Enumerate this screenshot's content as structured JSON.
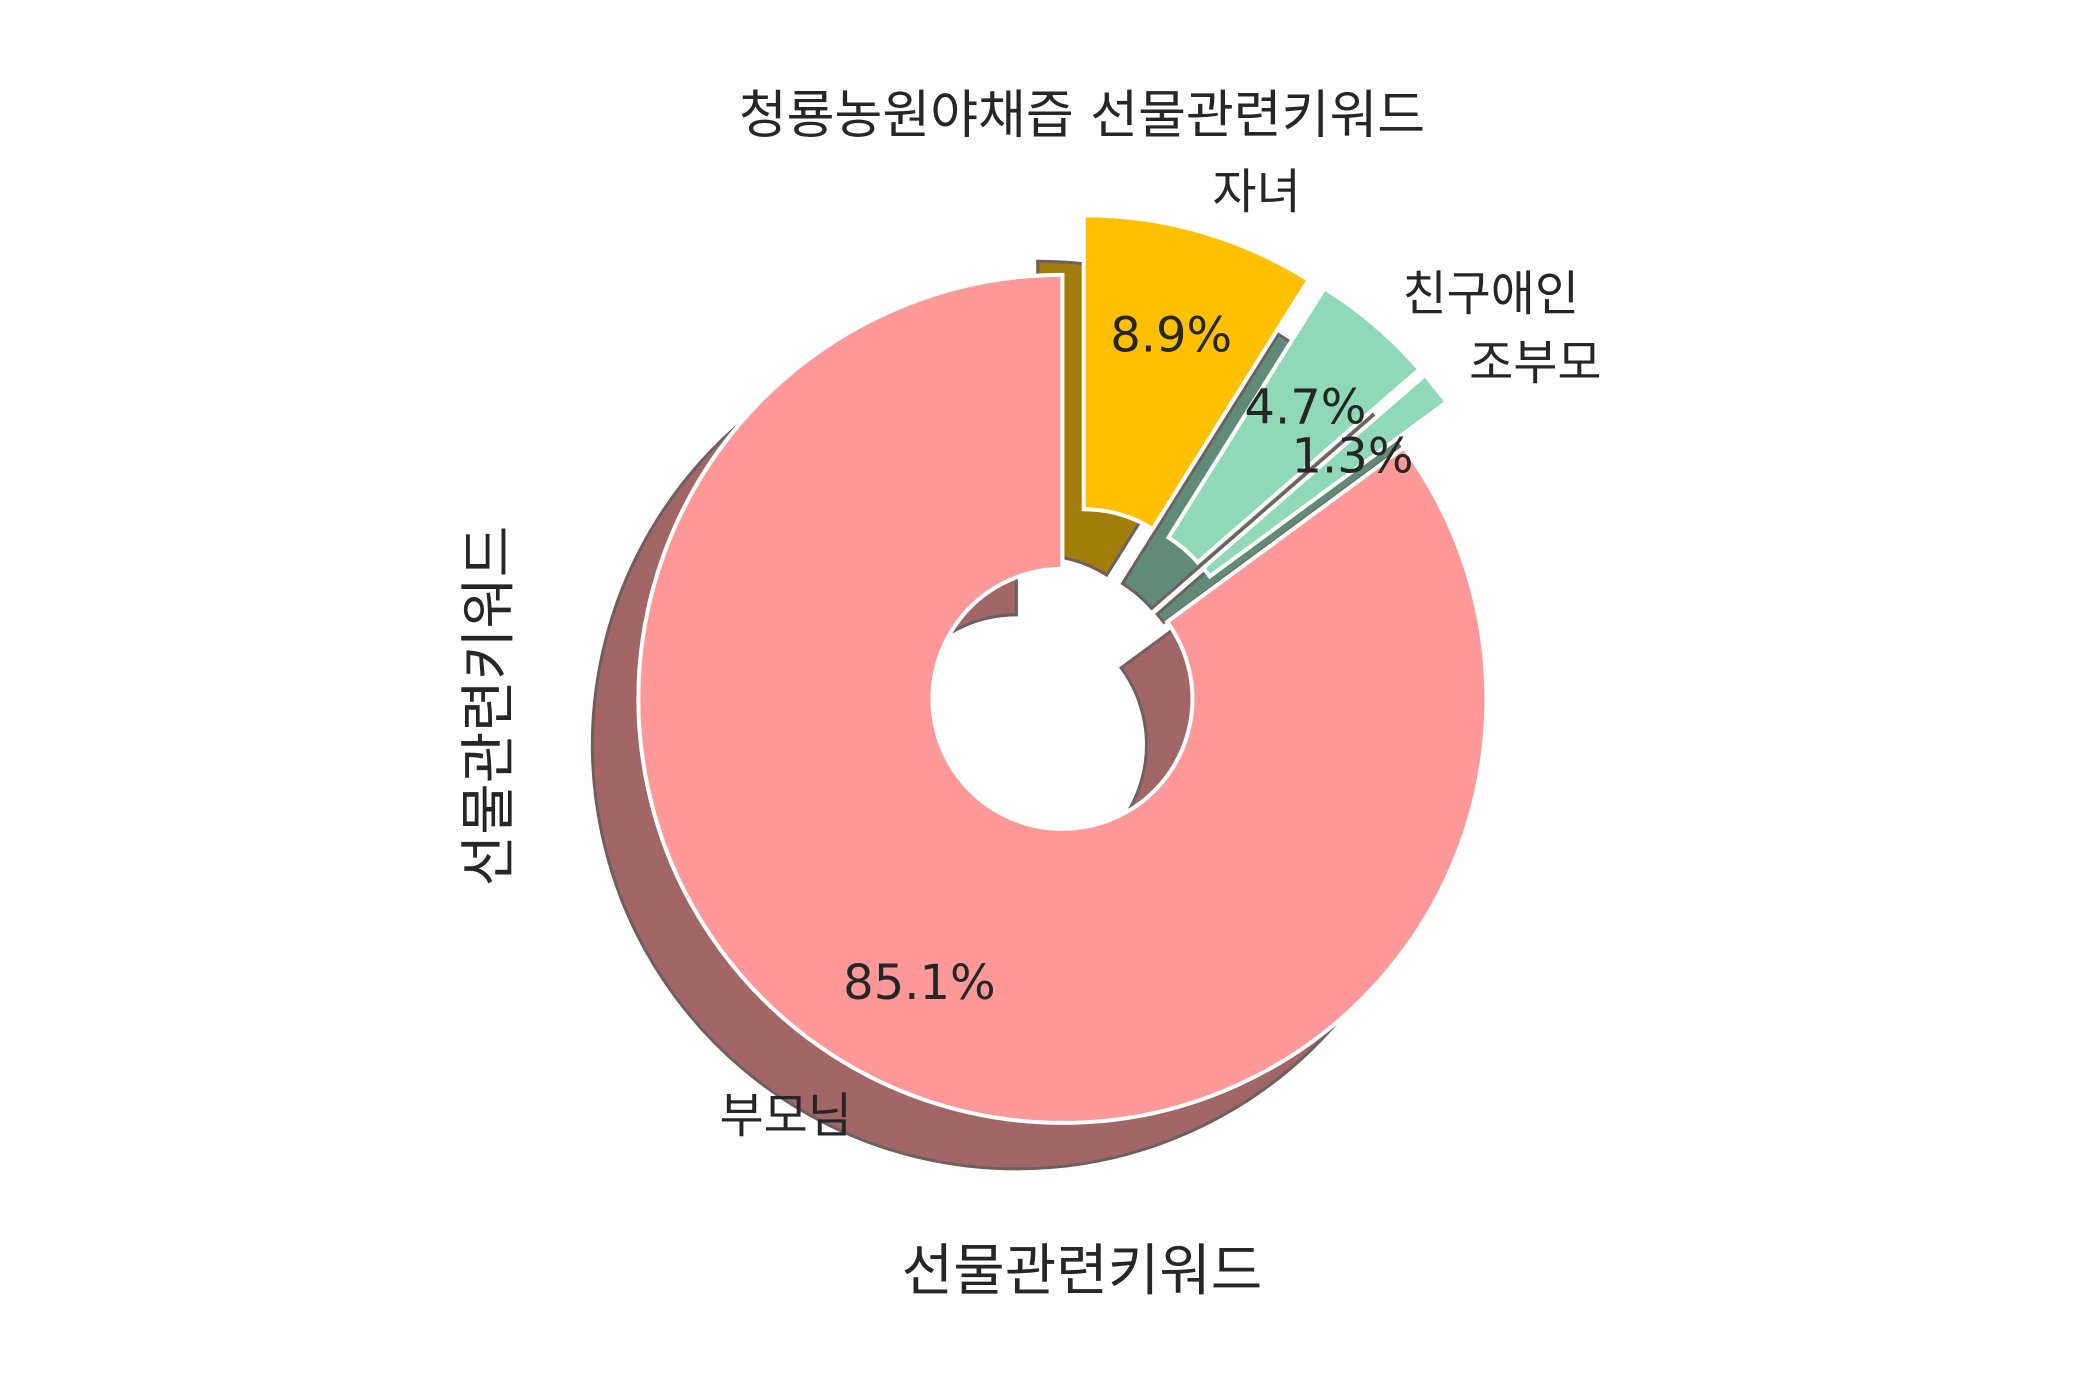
{
  "chart_data": {
    "type": "pie",
    "title": "청룡농원야채즙 선물관련키워드",
    "xlabel": "선물관련키워드",
    "ylabel": "선물관련키워드",
    "style": "donut, exploded slices, shadow",
    "slices": [
      {
        "label": "부모님",
        "value": 85.1,
        "pct_label": "85.1%",
        "color": "#ff9999"
      },
      {
        "label": "조부모",
        "value": 1.3,
        "pct_label": "1.3%",
        "color": "#8fd9b6"
      },
      {
        "label": "친구애인",
        "value": 4.7,
        "pct_label": "4.7%",
        "color": "#8fd9b6"
      },
      {
        "label": "자녀",
        "value": 8.9,
        "pct_label": "8.9%",
        "color": "#ffc000"
      }
    ]
  }
}
